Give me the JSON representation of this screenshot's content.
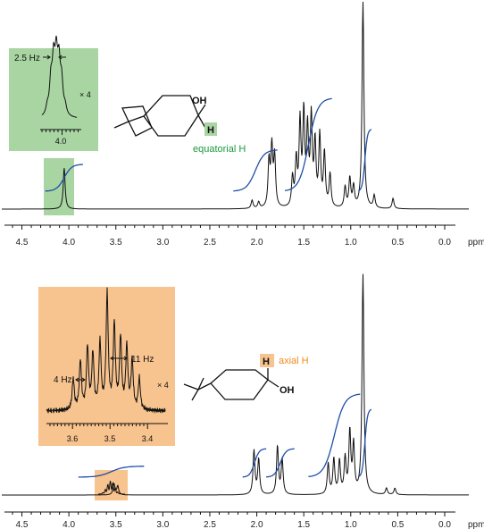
{
  "chart_data": [
    {
      "type": "line",
      "title": "",
      "xlabel": "ppm",
      "x_reversed": true,
      "xlim": [
        4.7,
        0.0
      ],
      "x_ticks": [
        "4.5",
        "4.0",
        "3.5",
        "3.0",
        "2.5",
        "2.0",
        "1.5",
        "1.0",
        "0.5",
        "0.0"
      ],
      "x_tick_values": [
        4.5,
        4.0,
        3.5,
        3.0,
        2.5,
        2.0,
        1.5,
        1.0,
        0.5,
        0.0
      ],
      "peaks": [
        {
          "ppm": 4.05,
          "height": 0.2
        },
        {
          "ppm": 2.05,
          "height": 0.04
        },
        {
          "ppm": 1.98,
          "height": 0.03
        },
        {
          "ppm": 1.87,
          "height": 0.22
        },
        {
          "ppm": 1.84,
          "height": 0.28
        },
        {
          "ppm": 1.81,
          "height": 0.24
        },
        {
          "ppm": 1.62,
          "height": 0.14
        },
        {
          "ppm": 1.58,
          "height": 0.22
        },
        {
          "ppm": 1.54,
          "height": 0.4
        },
        {
          "ppm": 1.5,
          "height": 0.44
        },
        {
          "ppm": 1.46,
          "height": 0.36
        },
        {
          "ppm": 1.42,
          "height": 0.42
        },
        {
          "ppm": 1.38,
          "height": 0.3
        },
        {
          "ppm": 1.33,
          "height": 0.34
        },
        {
          "ppm": 1.28,
          "height": 0.26
        },
        {
          "ppm": 1.22,
          "height": 0.16
        },
        {
          "ppm": 1.06,
          "height": 0.1
        },
        {
          "ppm": 1.01,
          "height": 0.14
        },
        {
          "ppm": 0.97,
          "height": 0.1
        },
        {
          "ppm": 0.87,
          "height": 1.0
        },
        {
          "ppm": 0.75,
          "height": 0.06
        },
        {
          "ppm": 0.55,
          "height": 0.05
        }
      ],
      "integrals": [
        {
          "from": 4.25,
          "to": 3.85,
          "rise": 0.13
        },
        {
          "from": 2.25,
          "to": 1.78,
          "rise": 0.2
        },
        {
          "from": 1.7,
          "to": 1.2,
          "rise": 0.45
        },
        {
          "from": 0.92,
          "to": 0.78,
          "rise": 0.3
        }
      ],
      "molecule_label": "equatorial H",
      "molecule_groups": {
        "oh": "OH",
        "h": "H"
      },
      "inset": {
        "coupling_label": "2.5 Hz",
        "scale_label": "× 4",
        "tick_label": "4.0",
        "highlight_color": "#a8d5a2"
      }
    },
    {
      "type": "line",
      "title": "",
      "xlabel": "ppm",
      "x_reversed": true,
      "xlim": [
        4.7,
        0.0
      ],
      "x_ticks": [
        "4.5",
        "4.0",
        "3.5",
        "3.0",
        "2.5",
        "2.0",
        "1.5",
        "1.0",
        "0.5",
        "0.0"
      ],
      "x_tick_values": [
        4.5,
        4.0,
        3.5,
        3.0,
        2.5,
        2.0,
        1.5,
        1.0,
        0.5,
        0.0
      ],
      "peaks": [
        {
          "ppm": 3.52,
          "height": 0.05
        },
        {
          "ppm": 3.48,
          "height": 0.04
        },
        {
          "ppm": 2.03,
          "height": 0.2
        },
        {
          "ppm": 1.98,
          "height": 0.16
        },
        {
          "ppm": 1.78,
          "height": 0.22
        },
        {
          "ppm": 1.73,
          "height": 0.16
        },
        {
          "ppm": 1.24,
          "height": 0.14
        },
        {
          "ppm": 1.18,
          "height": 0.16
        },
        {
          "ppm": 1.12,
          "height": 0.15
        },
        {
          "ppm": 1.06,
          "height": 0.16
        },
        {
          "ppm": 1.01,
          "height": 0.28
        },
        {
          "ppm": 0.97,
          "height": 0.22
        },
        {
          "ppm": 0.87,
          "height": 1.0
        },
        {
          "ppm": 0.62,
          "height": 0.03
        },
        {
          "ppm": 0.53,
          "height": 0.03
        }
      ],
      "integrals": [
        {
          "from": 3.9,
          "to": 3.2,
          "rise": 0.05
        },
        {
          "from": 2.15,
          "to": 1.9,
          "rise": 0.13
        },
        {
          "from": 1.9,
          "to": 1.6,
          "rise": 0.13
        },
        {
          "from": 1.45,
          "to": 0.9,
          "rise": 0.38
        },
        {
          "from": 0.92,
          "to": 0.78,
          "rise": 0.31
        }
      ],
      "molecule_label": "axial H",
      "molecule_groups": {
        "oh": "OH",
        "h": "H"
      },
      "inset": {
        "coupling_label_1": "11 Hz",
        "coupling_label_2": "4 Hz",
        "scale_label": "× 4",
        "x_ticks": [
          "3.6",
          "3.5",
          "3.4"
        ],
        "highlight_color": "#f7c38e"
      }
    }
  ],
  "colors": {
    "spectrum": "#111111",
    "integral": "#1f4fa8",
    "equatorial_text": "#1a9a3a",
    "axial_text": "#f08a1c",
    "green_fill": "#a8d5a2",
    "orange_fill": "#f7c38e"
  }
}
